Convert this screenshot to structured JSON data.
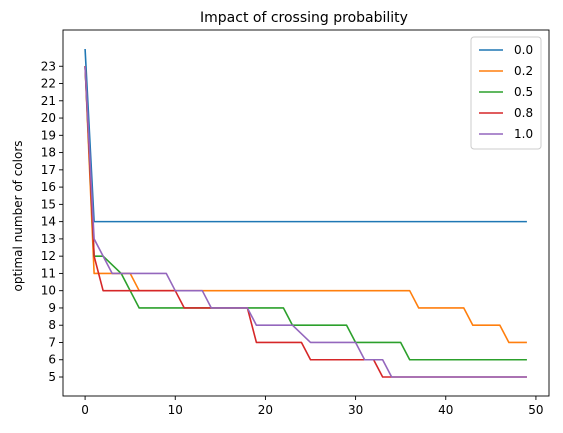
{
  "chart_data": {
    "type": "line",
    "title": "Impact of crossing probability",
    "xlabel": "",
    "ylabel": "optimal number of colors",
    "xlim": [
      -2.45,
      51.45
    ],
    "ylim": [
      3.9,
      25.1
    ],
    "xticks": [
      0,
      10,
      20,
      30,
      40,
      50
    ],
    "yticks": [
      5,
      6,
      7,
      8,
      9,
      10,
      11,
      12,
      13,
      14,
      15,
      16,
      17,
      18,
      19,
      20,
      21,
      22,
      23
    ],
    "grid": false,
    "legend_position": "top-right",
    "series": [
      {
        "name": "0.0",
        "color": "#1f77b4",
        "x": [
          0,
          1,
          49
        ],
        "y": [
          24,
          14,
          14
        ]
      },
      {
        "name": "0.2",
        "color": "#ff7f0e",
        "x": [
          0,
          1,
          5,
          6,
          36,
          37,
          42,
          43,
          46,
          47,
          49
        ],
        "y": [
          23,
          11,
          11,
          10,
          10,
          9,
          9,
          8,
          8,
          7,
          7
        ]
      },
      {
        "name": "0.5",
        "color": "#2ca02c",
        "x": [
          0,
          1,
          2,
          4,
          5,
          6,
          22,
          23,
          29,
          30,
          35,
          36,
          49
        ],
        "y": [
          23,
          12,
          12,
          11,
          10,
          9,
          9,
          8,
          8,
          7,
          7,
          6,
          6
        ]
      },
      {
        "name": "0.8",
        "color": "#d62728",
        "x": [
          0,
          1,
          2,
          10,
          11,
          18,
          19,
          24,
          25,
          32,
          33,
          49
        ],
        "y": [
          23,
          12,
          10,
          10,
          9,
          9,
          7,
          7,
          6,
          6,
          5,
          5
        ]
      },
      {
        "name": "1.0",
        "color": "#9467bd",
        "x": [
          0,
          1,
          3,
          9,
          10,
          13,
          14,
          18,
          19,
          23,
          25,
          30,
          31,
          33,
          34,
          49
        ],
        "y": [
          23,
          13,
          11,
          11,
          10,
          10,
          9,
          9,
          8,
          8,
          7,
          7,
          6,
          6,
          5,
          5
        ]
      }
    ]
  }
}
